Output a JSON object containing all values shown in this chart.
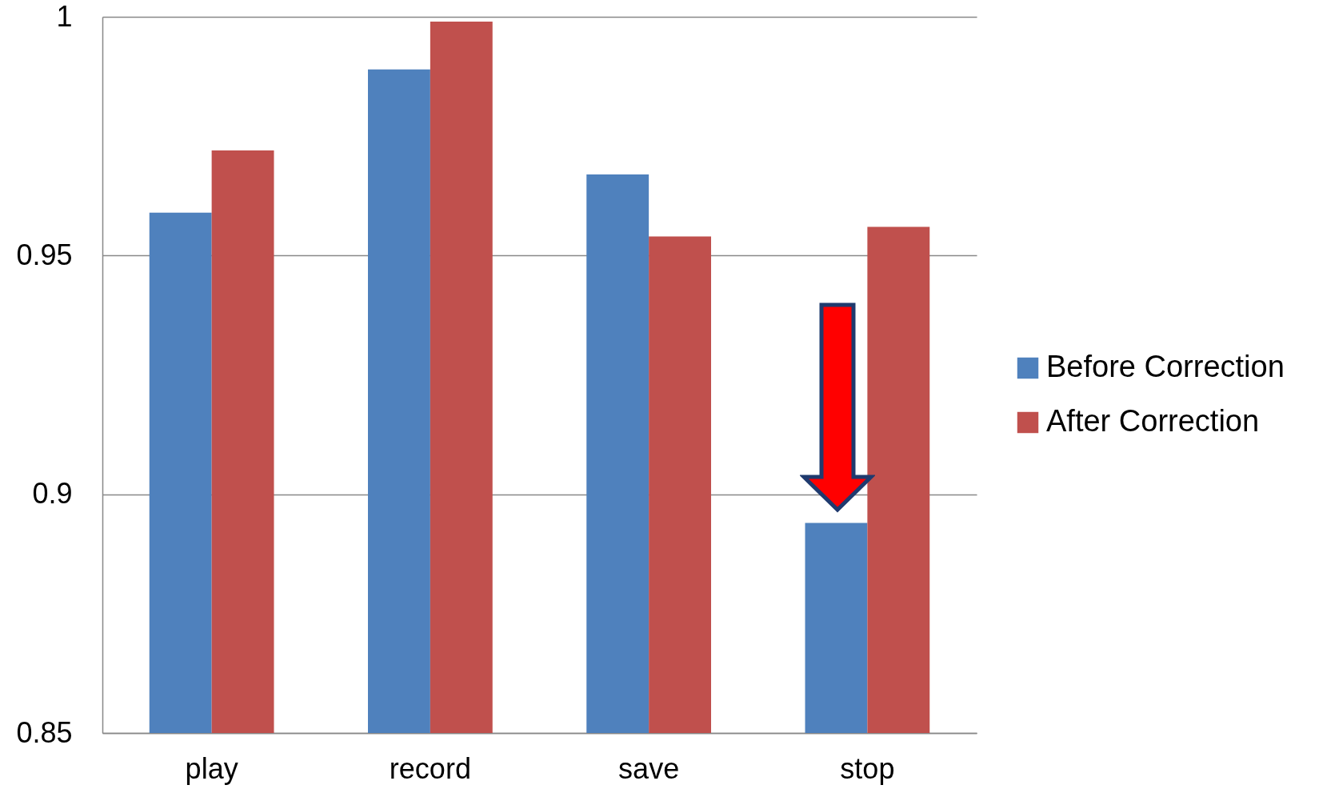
{
  "chart_data": {
    "type": "bar",
    "categories": [
      "play",
      "record",
      "save",
      "stop"
    ],
    "series": [
      {
        "name": "Before Correction",
        "color": "#4f81bd",
        "values": [
          0.959,
          0.989,
          0.967,
          0.894
        ]
      },
      {
        "name": "After Correction",
        "color": "#c0504d",
        "values": [
          0.972,
          0.999,
          0.954,
          0.956
        ]
      }
    ],
    "ylim": [
      0.85,
      1
    ],
    "yticks": [
      0.85,
      0.9,
      0.95,
      1
    ],
    "grid": "y",
    "legend": "right"
  }
}
